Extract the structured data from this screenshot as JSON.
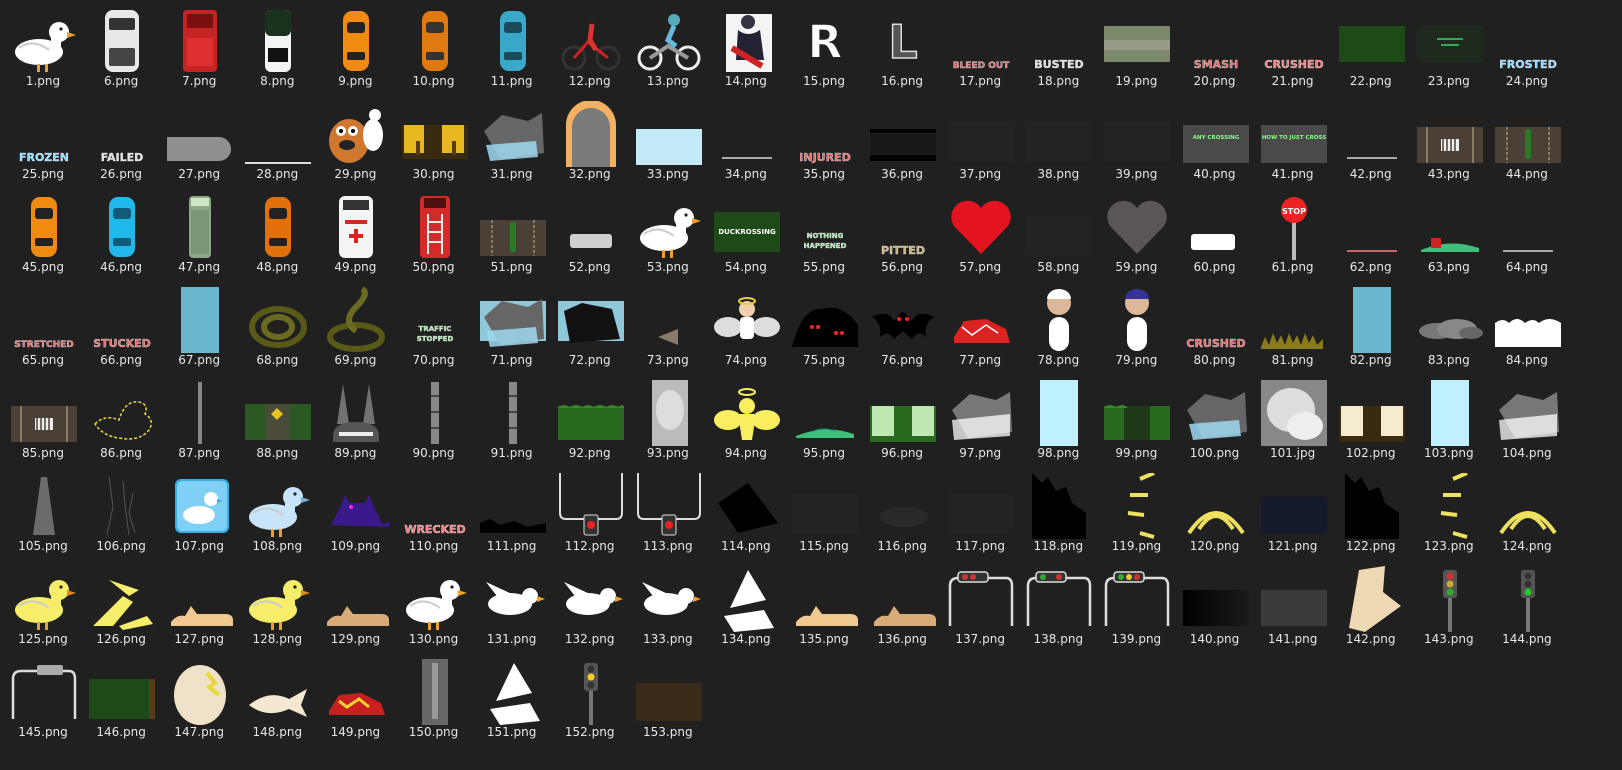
{
  "explorer": {
    "background": "#202020",
    "files": [
      {
        "name": "1.png",
        "icon": "duck-white"
      },
      {
        "name": "6.png",
        "icon": "van-white"
      },
      {
        "name": "7.png",
        "icon": "truck-red"
      },
      {
        "name": "8.png",
        "icon": "car-black-white"
      },
      {
        "name": "9.png",
        "icon": "car-orange"
      },
      {
        "name": "10.png",
        "icon": "car-orange-dark"
      },
      {
        "name": "11.png",
        "icon": "car-teal"
      },
      {
        "name": "12.png",
        "icon": "cyclist"
      },
      {
        "name": "13.png",
        "icon": "motocross-rider"
      },
      {
        "name": "14.png",
        "icon": "motorbike-rider"
      },
      {
        "name": "15.png",
        "icon": "letter-r",
        "text": "R"
      },
      {
        "name": "16.png",
        "icon": "letter-l",
        "text": "L"
      },
      {
        "name": "17.png",
        "icon": "text-banner",
        "text": "BLEED OUT",
        "color": "#e06a6a"
      },
      {
        "name": "18.png",
        "icon": "text-banner",
        "text": "BUSTED",
        "color": "#dddddd"
      },
      {
        "name": "19.png",
        "icon": "road-grass"
      },
      {
        "name": "20.png",
        "icon": "text-banner",
        "text": "SMASH",
        "color": "#e06a6a"
      },
      {
        "name": "21.png",
        "icon": "text-banner",
        "text": "CRUSHED",
        "color": "#f07a7a"
      },
      {
        "name": "22.png",
        "icon": "green-panel"
      },
      {
        "name": "23.png",
        "icon": "dark-panel-text"
      },
      {
        "name": "24.png",
        "icon": "text-banner",
        "text": "FROSTED",
        "color": "#8fd8ff"
      },
      {
        "name": "25.png",
        "icon": "text-banner",
        "text": "FROZEN",
        "color": "#8fd8ff"
      },
      {
        "name": "26.png",
        "icon": "text-banner",
        "text": "FAILED",
        "color": "#dddddd"
      },
      {
        "name": "27.png",
        "icon": "grey-capsule"
      },
      {
        "name": "28.png",
        "icon": "thin-line"
      },
      {
        "name": "29.png",
        "icon": "dog-with-duck"
      },
      {
        "name": "30.png",
        "icon": "yellow-trees"
      },
      {
        "name": "31.png",
        "icon": "rock-ice"
      },
      {
        "name": "32.png",
        "icon": "arch-door"
      },
      {
        "name": "33.png",
        "icon": "light-blue-panel"
      },
      {
        "name": "34.png",
        "icon": "tiny-text"
      },
      {
        "name": "35.png",
        "icon": "text-banner",
        "text": "INJURED",
        "color": "#e06a6a"
      },
      {
        "name": "36.png",
        "icon": "black-bars"
      },
      {
        "name": "37.png",
        "icon": "legs-standing"
      },
      {
        "name": "38.png",
        "icon": "legs-running"
      },
      {
        "name": "39.png",
        "icon": "legs-standing"
      },
      {
        "name": "40.png",
        "icon": "grey-panel-text",
        "text": "ANY CROSSING"
      },
      {
        "name": "41.png",
        "icon": "grey-panel-text",
        "text": "HOW TO JUST CROSS"
      },
      {
        "name": "42.png",
        "icon": "tiny-text"
      },
      {
        "name": "43.png",
        "icon": "road-crosswalk"
      },
      {
        "name": "44.png",
        "icon": "road-lanes"
      },
      {
        "name": "45.png",
        "icon": "car-orange"
      },
      {
        "name": "46.png",
        "icon": "car-blue"
      },
      {
        "name": "47.png",
        "icon": "truck-green"
      },
      {
        "name": "48.png",
        "icon": "car-orange-narrow"
      },
      {
        "name": "49.png",
        "icon": "ambulance"
      },
      {
        "name": "50.png",
        "icon": "fire-truck"
      },
      {
        "name": "51.png",
        "icon": "road-lanes"
      },
      {
        "name": "52.png",
        "icon": "grey-pill"
      },
      {
        "name": "53.png",
        "icon": "duck-white"
      },
      {
        "name": "54.png",
        "icon": "green-panel-text",
        "text": "DUCKROSSING"
      },
      {
        "name": "55.png",
        "icon": "text-banner",
        "text": "NOTHING HAPPENED",
        "color": "#9fe0a0"
      },
      {
        "name": "56.png",
        "icon": "text-banner",
        "text": "PITTED",
        "color": "#c8b27a"
      },
      {
        "name": "57.png",
        "icon": "heart-red"
      },
      {
        "name": "58.png",
        "icon": "legs-running"
      },
      {
        "name": "59.png",
        "icon": "heart-grey"
      },
      {
        "name": "60.png",
        "icon": "white-pill"
      },
      {
        "name": "61.png",
        "icon": "stop-sign",
        "text": "STOP"
      },
      {
        "name": "62.png",
        "icon": "tiny-text-red"
      },
      {
        "name": "63.png",
        "icon": "flat-green-car"
      },
      {
        "name": "64.png",
        "icon": "tiny-text"
      },
      {
        "name": "65.png",
        "icon": "text-banner",
        "text": "STRETCHED",
        "color": "#e06a6a"
      },
      {
        "name": "66.png",
        "icon": "text-banner",
        "text": "STUCKED",
        "color": "#e06a6a"
      },
      {
        "name": "67.png",
        "icon": "sky-blue-tall"
      },
      {
        "name": "68.png",
        "icon": "snake-coil"
      },
      {
        "name": "69.png",
        "icon": "snake-raised"
      },
      {
        "name": "70.png",
        "icon": "text-banner",
        "text": "TRAFFIC STOPPED",
        "color": "#9fe0a0"
      },
      {
        "name": "71.png",
        "icon": "rock-blue-bg"
      },
      {
        "name": "72.png",
        "icon": "rock-dark-blue-bg"
      },
      {
        "name": "73.png",
        "icon": "small-triangle"
      },
      {
        "name": "74.png",
        "icon": "angel"
      },
      {
        "name": "75.png",
        "icon": "shadow-creatures"
      },
      {
        "name": "76.png",
        "icon": "bat"
      },
      {
        "name": "77.png",
        "icon": "crushed-red-car"
      },
      {
        "name": "78.png",
        "icon": "person-white-cap"
      },
      {
        "name": "79.png",
        "icon": "person-blue-hair"
      },
      {
        "name": "80.png",
        "icon": "text-banner",
        "text": "CRUSHED",
        "color": "#e06a6a"
      },
      {
        "name": "81.png",
        "icon": "grass-strip"
      },
      {
        "name": "82.png",
        "icon": "sky-blue-tall"
      },
      {
        "name": "83.png",
        "icon": "smoke-cloud"
      },
      {
        "name": "84.png",
        "icon": "snow-drift"
      },
      {
        "name": "85.png",
        "icon": "road-crosswalk"
      },
      {
        "name": "86.png",
        "icon": "duck-outline-dashed"
      },
      {
        "name": "87.png",
        "icon": "pole-thin"
      },
      {
        "name": "88.png",
        "icon": "grass-sign-scene"
      },
      {
        "name": "89.png",
        "icon": "car-headlights"
      },
      {
        "name": "90.png",
        "icon": "pole-segmented"
      },
      {
        "name": "91.png",
        "icon": "pole-segmented"
      },
      {
        "name": "92.png",
        "icon": "bushes-scene"
      },
      {
        "name": "93.png",
        "icon": "fog-panel"
      },
      {
        "name": "94.png",
        "icon": "angel-yellow"
      },
      {
        "name": "95.png",
        "icon": "flat-green-car-light"
      },
      {
        "name": "96.png",
        "icon": "trees-light-scene"
      },
      {
        "name": "97.png",
        "icon": "rock-fog"
      },
      {
        "name": "98.png",
        "icon": "ice-blue-tall"
      },
      {
        "name": "99.png",
        "icon": "bushes-scene-dark"
      },
      {
        "name": "100.png",
        "icon": "rock-ice"
      },
      {
        "name": "101.jpg",
        "icon": "fog-square"
      },
      {
        "name": "102.png",
        "icon": "trees-cream-scene"
      },
      {
        "name": "103.png",
        "icon": "ice-blue-tall"
      },
      {
        "name": "104.png",
        "icon": "rock-fog"
      },
      {
        "name": "105.png",
        "icon": "light-beam"
      },
      {
        "name": "106.png",
        "icon": "cracks"
      },
      {
        "name": "107.png",
        "icon": "duck-app-icon"
      },
      {
        "name": "108.png",
        "icon": "duck-light-blue"
      },
      {
        "name": "109.png",
        "icon": "cat-purple"
      },
      {
        "name": "110.png",
        "icon": "text-banner",
        "text": "WRECKED",
        "color": "#f07a7a"
      },
      {
        "name": "111.png",
        "icon": "black-silhouette-strip"
      },
      {
        "name": "112.png",
        "icon": "traffic-light-hanging"
      },
      {
        "name": "113.png",
        "icon": "traffic-light-hanging"
      },
      {
        "name": "114.png",
        "icon": "black-shard"
      },
      {
        "name": "115.png",
        "icon": "blank-dark"
      },
      {
        "name": "116.png",
        "icon": "dark-smudge"
      },
      {
        "name": "117.png",
        "icon": "blank-dark"
      },
      {
        "name": "118.png",
        "icon": "black-jagged"
      },
      {
        "name": "119.png",
        "icon": "yellow-rays"
      },
      {
        "name": "120.png",
        "icon": "yellow-arcs"
      },
      {
        "name": "121.png",
        "icon": "navy-panel"
      },
      {
        "name": "122.png",
        "icon": "black-jagged"
      },
      {
        "name": "123.png",
        "icon": "yellow-rays"
      },
      {
        "name": "124.png",
        "icon": "yellow-arcs"
      },
      {
        "name": "125.png",
        "icon": "duck-yellow"
      },
      {
        "name": "126.png",
        "icon": "yellow-feathers"
      },
      {
        "name": "127.png",
        "icon": "flat-duck-tan"
      },
      {
        "name": "128.png",
        "icon": "duck-yellow"
      },
      {
        "name": "129.png",
        "icon": "flat-duck-brown"
      },
      {
        "name": "130.png",
        "icon": "duck-white-small"
      },
      {
        "name": "131.png",
        "icon": "duck-white-flying"
      },
      {
        "name": "132.png",
        "icon": "duck-white-flying"
      },
      {
        "name": "133.png",
        "icon": "duck-white-flying"
      },
      {
        "name": "134.png",
        "icon": "white-shards"
      },
      {
        "name": "135.png",
        "icon": "flat-duck-tan"
      },
      {
        "name": "136.png",
        "icon": "flat-duck-brown"
      },
      {
        "name": "137.png",
        "icon": "signal-frame-red"
      },
      {
        "name": "138.png",
        "icon": "signal-frame-green"
      },
      {
        "name": "139.png",
        "icon": "signal-frame-yellow"
      },
      {
        "name": "140.png",
        "icon": "black-gradient"
      },
      {
        "name": "141.png",
        "icon": "charcoal-panel"
      },
      {
        "name": "142.png",
        "icon": "beige-shard"
      },
      {
        "name": "143.png",
        "icon": "traffic-light-pole"
      },
      {
        "name": "144.png",
        "icon": "traffic-light-pole-green"
      },
      {
        "name": "145.png",
        "icon": "signal-frame-empty"
      },
      {
        "name": "146.png",
        "icon": "green-dark-panel"
      },
      {
        "name": "147.png",
        "icon": "egg-cracked"
      },
      {
        "name": "148.png",
        "icon": "fish-pale"
      },
      {
        "name": "149.png",
        "icon": "crushed-red-yellow"
      },
      {
        "name": "150.png",
        "icon": "road-vertical"
      },
      {
        "name": "151.png",
        "icon": "white-shards"
      },
      {
        "name": "152.png",
        "icon": "traffic-light-pole-yellow"
      },
      {
        "name": "153.png",
        "icon": "brown-panel"
      }
    ]
  }
}
